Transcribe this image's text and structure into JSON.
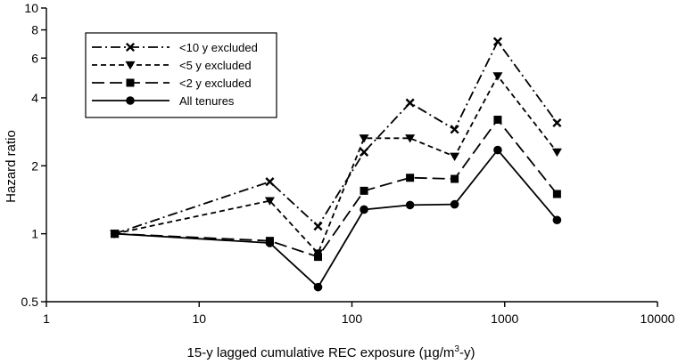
{
  "chart_data": {
    "type": "line",
    "title": "",
    "xlabel": "15-y lagged  cumulative REC exposure (μg/m³-y)",
    "xlabel_parts": {
      "main": "15-y lagged  cumulative REC exposure (",
      "mu": "μ",
      "unit": "g/m",
      "sup": "3",
      "tail": "-y)"
    },
    "ylabel": "Hazard  ratio",
    "x_scale": "log",
    "y_scale": "log",
    "xlim": [
      1,
      10000
    ],
    "ylim": [
      0.5,
      10
    ],
    "x_ticks": [
      1,
      10,
      100,
      1000,
      10000
    ],
    "x_tick_labels": [
      "1",
      "10",
      "100",
      "1000",
      "10000"
    ],
    "y_ticks": [
      0.5,
      1,
      2,
      4,
      6,
      8,
      10
    ],
    "y_tick_labels": [
      "0.5",
      "1",
      "2",
      "4",
      "6",
      "8",
      "10"
    ],
    "grid": false,
    "legend_position": "top-left",
    "x": [
      2.8,
      29,
      60,
      120,
      240,
      470,
      900,
      2200
    ],
    "series": [
      {
        "name": "<10 y excluded",
        "marker": "x",
        "dash": "dash-dot",
        "values": [
          1.0,
          1.7,
          1.08,
          2.3,
          3.8,
          2.9,
          7.1,
          3.1
        ]
      },
      {
        "name": "<5 y excluded",
        "marker": "triangle-down",
        "dash": "short-dash",
        "values": [
          1.0,
          1.4,
          0.82,
          2.65,
          2.65,
          2.2,
          5.0,
          2.3
        ]
      },
      {
        "name": "<2 y excluded",
        "marker": "square",
        "dash": "long-dash",
        "values": [
          1.0,
          0.93,
          0.79,
          1.55,
          1.77,
          1.75,
          3.2,
          1.5
        ]
      },
      {
        "name": "All tenures",
        "marker": "circle",
        "dash": "solid",
        "values": [
          1.0,
          0.91,
          0.58,
          1.28,
          1.34,
          1.35,
          2.35,
          1.15
        ]
      }
    ]
  }
}
